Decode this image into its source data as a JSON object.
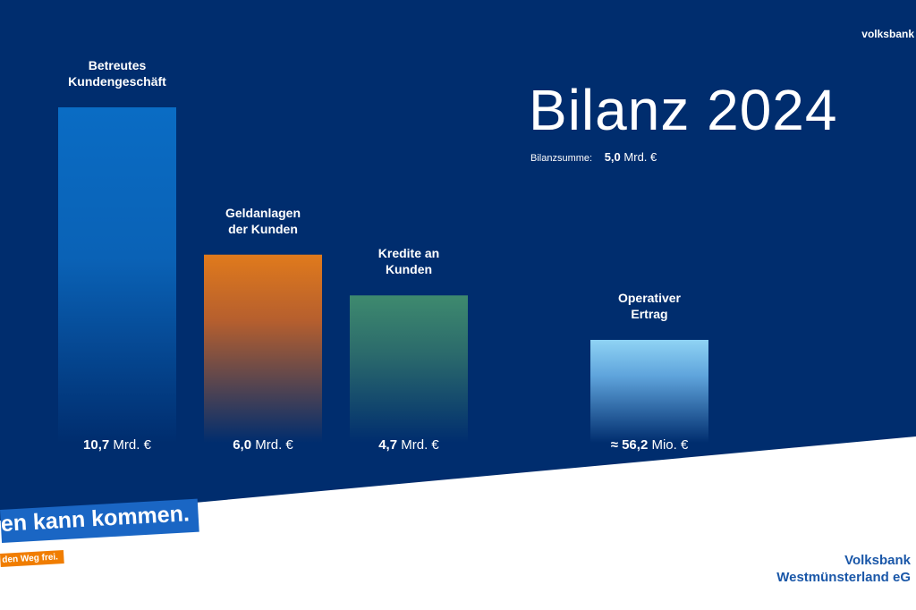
{
  "brand_top": "volksbank",
  "title": "Bilanz 2024",
  "total": {
    "label": "Bilanzsumme:",
    "value": "5,0",
    "unit": "Mrd. €"
  },
  "chart_data": {
    "type": "bar",
    "categories": [
      "Betreutes Kundengeschäft",
      "Geldanlagen der Kunden",
      "Kredite an Kunden",
      "Operativer Ertrag"
    ],
    "label_lines": [
      [
        "Betreutes",
        "Kundengeschäft"
      ],
      [
        "Geldanlagen",
        "der Kunden"
      ],
      [
        "Kredite an",
        "Kunden"
      ],
      [
        "Operativer",
        "Ertrag"
      ]
    ],
    "value_texts": [
      {
        "prefix": "",
        "num": "10,7",
        "unit": "Mrd. €"
      },
      {
        "prefix": "",
        "num": "6,0",
        "unit": "Mrd. €"
      },
      {
        "prefix": "",
        "num": "4,7",
        "unit": "Mrd. €"
      },
      {
        "prefix": "≈ ",
        "num": "56,2",
        "unit": "Mio. €"
      }
    ],
    "values": [
      10.7,
      6.0,
      4.7,
      56.2
    ],
    "units": [
      "Mrd. €",
      "Mrd. €",
      "Mrd. €",
      "Mio. €"
    ],
    "colors": [
      "#0a6cc4",
      "#e07a1c",
      "#3e8a6e",
      "#8fd3f4"
    ],
    "grid": false,
    "legend": "none"
  },
  "slogan": {
    "main": "en kann kommen.",
    "sub": "den Weg frei."
  },
  "bank_name": {
    "line1": "Volksbank",
    "line2": "Westmünsterland eG"
  },
  "colors": {
    "background": "#002d6e",
    "slogan_blue": "#1a66c4",
    "slogan_orange": "#f07d00",
    "bank_name": "#1a57a8"
  }
}
